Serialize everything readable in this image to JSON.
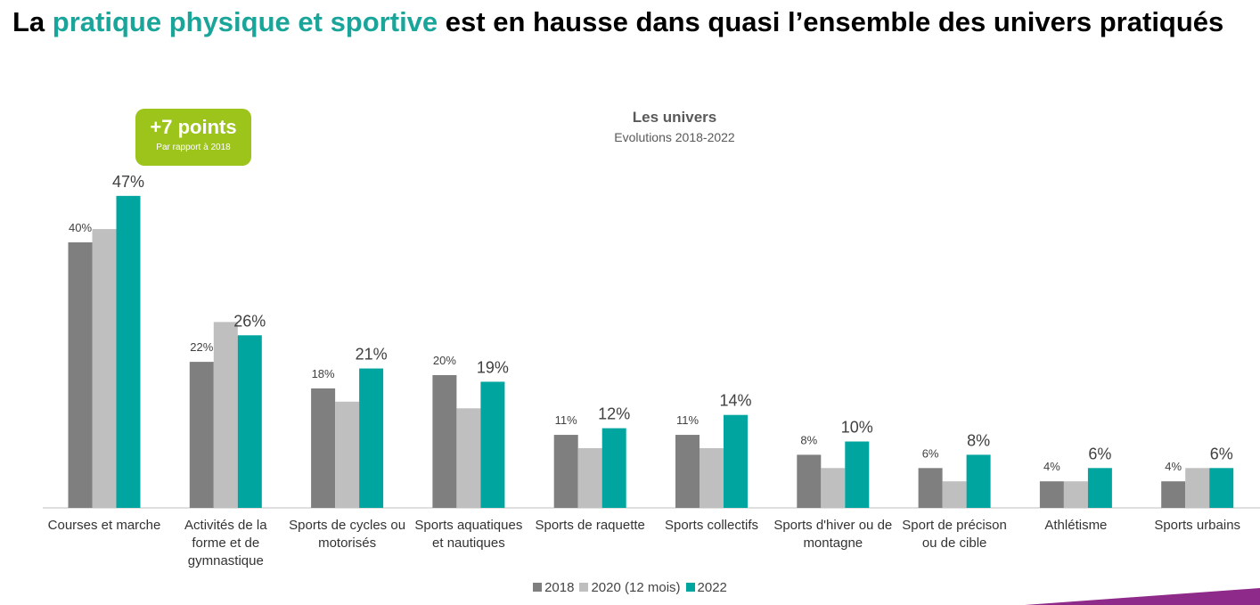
{
  "chart_data": {
    "type": "bar",
    "title_parts": [
      {
        "text": "La ",
        "color": "#000000"
      },
      {
        "text": "pratique physique et sportive",
        "color": "#1aa59a"
      },
      {
        "text": " est en hausse dans quasi l’ensemble des univers pratiqués",
        "color": "#000000"
      }
    ],
    "chart_title": "Les univers",
    "subtitle": "Evolutions 2018-2022",
    "badge": {
      "headline": "+7 points",
      "note": "Par rapport à 2018",
      "color": "#9dc41a"
    },
    "categories": [
      "Courses et marche",
      "Activités de la forme et de gymnastique",
      "Sports de cycles ou motorisés",
      "Sports aquatiques et nautiques",
      "Sports de raquette",
      "Sports collectifs",
      "Sports d'hiver ou de montagne",
      "Sport de précison ou de cible",
      "Athlétisme",
      "Sports urbains"
    ],
    "series": [
      {
        "name": "2018",
        "color": "#7f7f7f",
        "values": [
          40,
          22,
          18,
          20,
          11,
          11,
          8,
          6,
          4,
          4
        ],
        "value_labels": [
          "40%",
          "22%",
          "18%",
          "20%",
          "11%",
          "11%",
          "8%",
          "6%",
          "4%",
          "4%"
        ]
      },
      {
        "name": "2020 (12 mois)",
        "color": "#bfbfbf",
        "values": [
          42,
          28,
          16,
          15,
          9,
          9,
          6,
          4,
          4,
          6
        ]
      },
      {
        "name": "2022",
        "color": "#00a59f",
        "values": [
          47,
          26,
          21,
          19,
          12,
          14,
          10,
          8,
          6,
          6
        ],
        "value_labels": [
          "47%",
          "26%",
          "21%",
          "19%",
          "12%",
          "14%",
          "10%",
          "8%",
          "6%",
          "6%"
        ]
      }
    ],
    "ylim": [
      0,
      50
    ]
  }
}
